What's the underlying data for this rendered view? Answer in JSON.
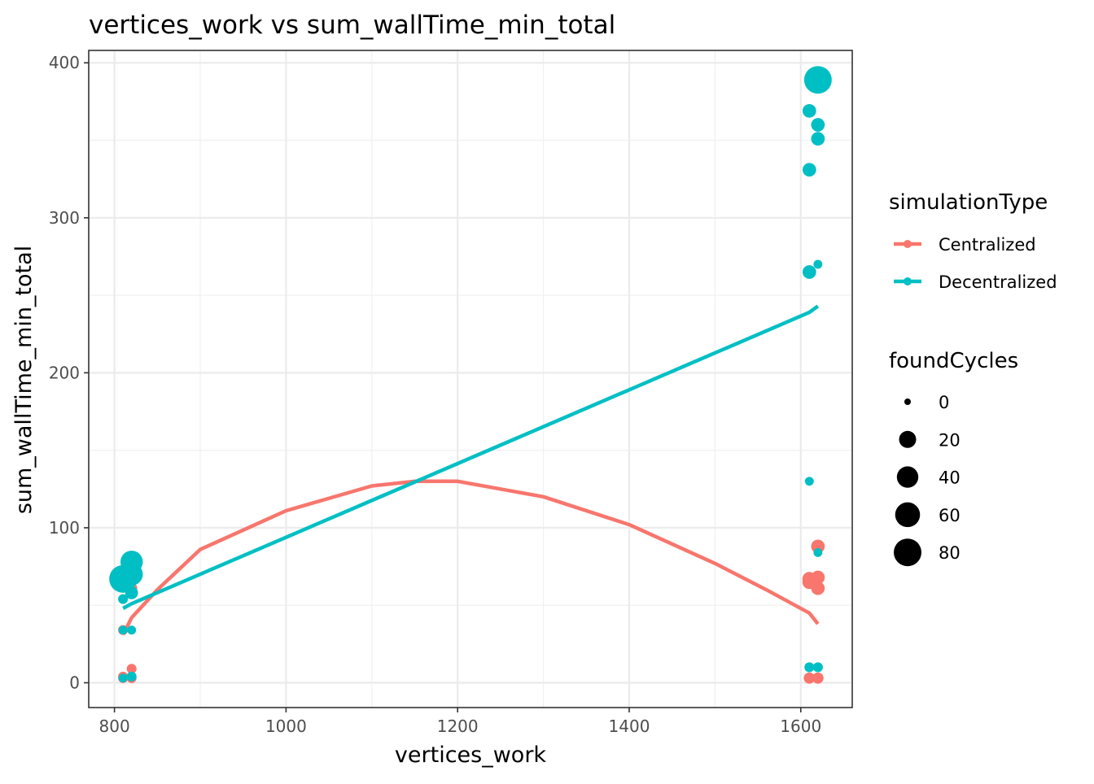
{
  "chart_data": {
    "type": "scatter",
    "title": "vertices_work  vs  sum_wallTime_min_total",
    "xlabel": "vertices_work",
    "ylabel": "sum_wallTime_min_total",
    "xlim": [
      770,
      1660
    ],
    "ylim": [
      -16,
      408
    ],
    "xticks": [
      800,
      1000,
      1200,
      1400,
      1600
    ],
    "yticks": [
      0,
      100,
      200,
      300,
      400
    ],
    "grid": true,
    "legend_position": "right",
    "colors": {
      "Centralized": "#F8766D",
      "Decentralized": "#00BFC4"
    },
    "color_legend": {
      "title": "simulationType",
      "entries": [
        "Centralized",
        "Decentralized"
      ]
    },
    "size_legend": {
      "title": "foundCycles",
      "values": [
        0,
        20,
        40,
        60,
        80
      ],
      "labels": [
        "0",
        "20",
        "40",
        "60",
        "80"
      ]
    },
    "series": [
      {
        "name": "Centralized",
        "points": [
          {
            "x": 810,
            "y": 3,
            "size": 2
          },
          {
            "x": 810,
            "y": 4,
            "size": 2
          },
          {
            "x": 820,
            "y": 3,
            "size": 2
          },
          {
            "x": 820,
            "y": 9,
            "size": 2
          },
          {
            "x": 810,
            "y": 34,
            "size": 2
          },
          {
            "x": 820,
            "y": 61,
            "size": 4
          },
          {
            "x": 1610,
            "y": 3,
            "size": 4
          },
          {
            "x": 1620,
            "y": 3,
            "size": 4
          },
          {
            "x": 1610,
            "y": 65,
            "size": 10
          },
          {
            "x": 1610,
            "y": 67,
            "size": 10
          },
          {
            "x": 1620,
            "y": 61,
            "size": 9
          },
          {
            "x": 1620,
            "y": 68,
            "size": 9
          },
          {
            "x": 1620,
            "y": 88,
            "size": 9
          }
        ],
        "smooth": {
          "x": [
            810,
            820,
            850,
            900,
            1000,
            1100,
            1150,
            1200,
            1300,
            1400,
            1500,
            1560,
            1610,
            1620
          ],
          "y": [
            31,
            42,
            60,
            86,
            111,
            127,
            130,
            130,
            120,
            102,
            77,
            60,
            45,
            38
          ]
        }
      },
      {
        "name": "Decentralized",
        "points": [
          {
            "x": 810,
            "y": 3,
            "size": 1
          },
          {
            "x": 820,
            "y": 4,
            "size": 2
          },
          {
            "x": 810,
            "y": 34,
            "size": 1
          },
          {
            "x": 820,
            "y": 34,
            "size": 1
          },
          {
            "x": 810,
            "y": 54,
            "size": 2
          },
          {
            "x": 820,
            "y": 58,
            "size": 7
          },
          {
            "x": 810,
            "y": 67,
            "size": 80
          },
          {
            "x": 820,
            "y": 70,
            "size": 45
          },
          {
            "x": 820,
            "y": 78,
            "size": 45
          },
          {
            "x": 1610,
            "y": 10,
            "size": 2
          },
          {
            "x": 1620,
            "y": 10,
            "size": 2
          },
          {
            "x": 1620,
            "y": 84,
            "size": 1
          },
          {
            "x": 1610,
            "y": 130,
            "size": 1
          },
          {
            "x": 1610,
            "y": 265,
            "size": 9
          },
          {
            "x": 1620,
            "y": 270,
            "size": 1
          },
          {
            "x": 1610,
            "y": 331,
            "size": 9
          },
          {
            "x": 1620,
            "y": 351,
            "size": 9
          },
          {
            "x": 1620,
            "y": 360,
            "size": 9
          },
          {
            "x": 1610,
            "y": 369,
            "size": 9
          },
          {
            "x": 1620,
            "y": 389,
            "size": 80
          }
        ],
        "smooth": {
          "x": [
            810,
            820,
            1610,
            1620
          ],
          "y": [
            48,
            51,
            239,
            243
          ]
        }
      }
    ]
  }
}
